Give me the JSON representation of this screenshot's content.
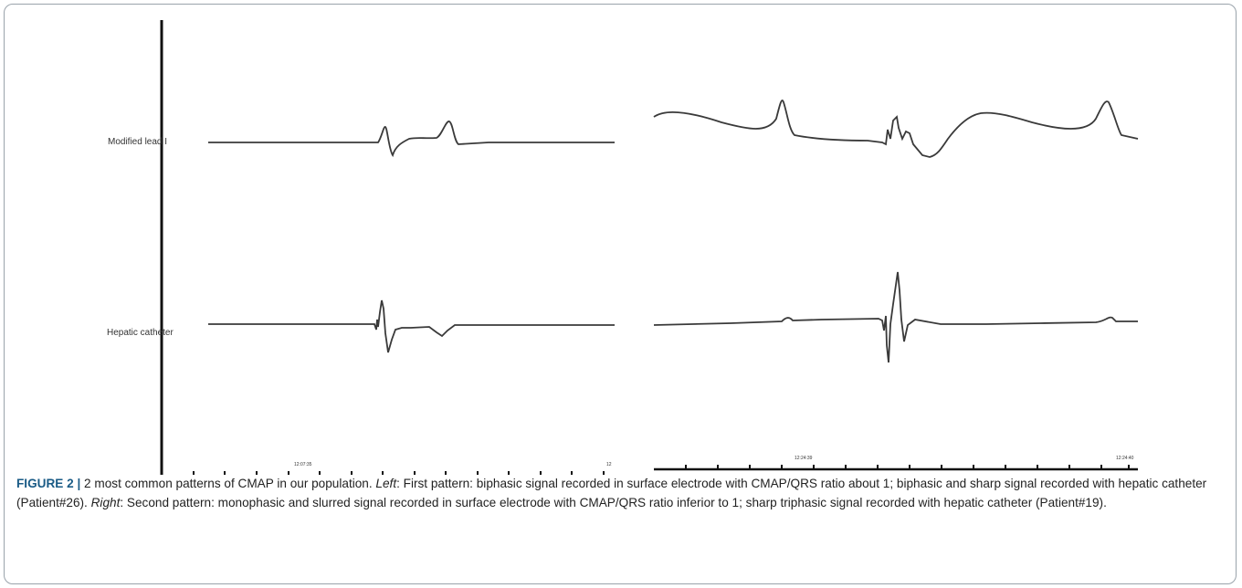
{
  "figure": {
    "labels": {
      "lead": "Modified lead I",
      "catheter": "Hepatic catheter"
    },
    "left_panel": {
      "time_start": "12:07:35",
      "time_end": "12"
    },
    "right_panel": {
      "time_start": "12:24:39",
      "time_end": "12:24:40"
    }
  },
  "caption": {
    "label": "FIGURE 2 |",
    "intro": " 2 most common patterns of CMAP in our population. ",
    "left_word": "Left",
    "left_text": ": First pattern: biphasic signal recorded in surface electrode with CMAP/QRS ratio about 1; biphasic and sharp signal recorded with hepatic catheter (Patient#26). ",
    "right_word": "Right",
    "right_text": ": Second pattern: monophasic and slurred signal recorded in surface electrode with CMAP/QRS ratio inferior to 1; sharp triphasic signal recorded with hepatic catheter (Patient#19)."
  },
  "colors": {
    "trace": "#3a3a3a",
    "caption_label": "#1a5b86",
    "frame": "#9aa3ab"
  }
}
